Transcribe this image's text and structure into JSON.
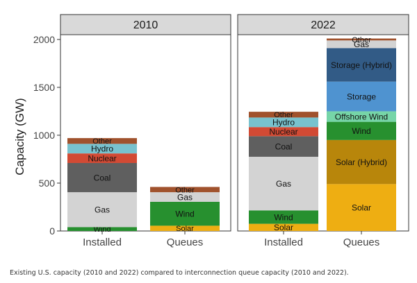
{
  "caption": "Existing U.S. capacity (2010 and 2022) compared to interconnection queue capacity (2010 and 2022).",
  "chart_data": {
    "type": "bar",
    "stacked": true,
    "ylabel": "Capacity (GW)",
    "xlabel": "",
    "ylim": [
      0,
      2050
    ],
    "yticks": [
      0,
      500,
      1000,
      1500,
      2000
    ],
    "grid": false,
    "legend": "none (segments labeled inline)",
    "panels": [
      {
        "title": "2010",
        "bars": [
          {
            "category": "Installed",
            "segments": [
              {
                "name": "Wind",
                "value": 40
              },
              {
                "name": "Gas",
                "value": 365
              },
              {
                "name": "Coal",
                "value": 305
              },
              {
                "name": "Nuclear",
                "value": 100
              },
              {
                "name": "Hydro",
                "value": 100
              },
              {
                "name": "Other",
                "value": 60
              }
            ]
          },
          {
            "category": "Queues",
            "segments": [
              {
                "name": "Solar",
                "value": 55
              },
              {
                "name": "Wind",
                "value": 250
              },
              {
                "name": "Gas",
                "value": 100
              },
              {
                "name": "Other",
                "value": 55
              }
            ]
          }
        ]
      },
      {
        "title": "2022",
        "bars": [
          {
            "category": "Installed",
            "segments": [
              {
                "name": "Solar",
                "value": 75
              },
              {
                "name": "Wind",
                "value": 140
              },
              {
                "name": "Gas",
                "value": 560
              },
              {
                "name": "Coal",
                "value": 215
              },
              {
                "name": "Nuclear",
                "value": 95
              },
              {
                "name": "Hydro",
                "value": 100
              },
              {
                "name": "Other",
                "value": 60
              }
            ]
          },
          {
            "category": "Queues",
            "segments": [
              {
                "name": "Solar",
                "value": 490
              },
              {
                "name": "Solar (Hybrid)",
                "value": 460
              },
              {
                "name": "Wind",
                "value": 190
              },
              {
                "name": "Offshore Wind",
                "value": 110
              },
              {
                "name": "Storage",
                "value": 310
              },
              {
                "name": "Storage (Hybrid)",
                "value": 350
              },
              {
                "name": "Gas",
                "value": 80
              },
              {
                "name": "Other",
                "value": 20
              }
            ]
          }
        ]
      }
    ],
    "colors": {
      "Solar": "#eeae12",
      "Solar (Hybrid)": "#b8860b",
      "Wind": "#27902f",
      "Offshore Wind": "#76d5a8",
      "Storage": "#4f93d0",
      "Storage (Hybrid)": "#325b86",
      "Gas": "#d3d3d3",
      "Coal": "#5f5f5f",
      "Nuclear": "#d24a34",
      "Hydro": "#78c2ce",
      "Other": "#a0522d"
    },
    "label_mode": {
      "2010|Installed|Wind": "bottom"
    }
  }
}
